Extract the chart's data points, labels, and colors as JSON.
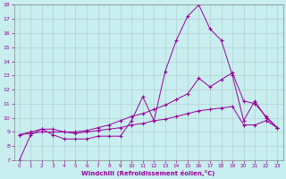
{
  "xlabel": "Windchill (Refroidissement éolien,°C)",
  "xlim": [
    -0.5,
    23.5
  ],
  "ylim": [
    7,
    18
  ],
  "yticks": [
    7,
    8,
    9,
    10,
    11,
    12,
    13,
    14,
    15,
    16,
    17,
    18
  ],
  "xticks": [
    0,
    1,
    2,
    3,
    4,
    5,
    6,
    7,
    8,
    9,
    10,
    11,
    12,
    13,
    14,
    15,
    16,
    17,
    18,
    19,
    20,
    21,
    22,
    23
  ],
  "bg_color": "#c8eef0",
  "grid_color": "#b0c8c8",
  "line_color": "#990099",
  "line1_x": [
    0,
    1,
    2,
    3,
    4,
    5,
    6,
    7,
    8,
    9,
    10,
    11,
    12,
    13,
    14,
    15,
    16,
    17,
    18,
    19,
    20,
    21,
    22,
    23
  ],
  "line1_y": [
    7.0,
    8.8,
    9.2,
    8.8,
    8.5,
    8.5,
    8.5,
    8.7,
    8.7,
    8.7,
    9.8,
    11.5,
    9.8,
    13.3,
    15.5,
    17.2,
    18.0,
    16.3,
    15.5,
    13.0,
    9.8,
    11.2,
    10.0,
    9.3
  ],
  "line2_x": [
    0,
    1,
    2,
    3,
    4,
    5,
    6,
    7,
    8,
    9,
    10,
    11,
    12,
    13,
    14,
    15,
    16,
    17,
    18,
    19,
    20,
    21,
    22,
    23
  ],
  "line2_y": [
    8.8,
    9.0,
    9.2,
    9.2,
    9.0,
    9.0,
    9.1,
    9.3,
    9.5,
    9.8,
    10.1,
    10.3,
    10.6,
    10.9,
    11.3,
    11.7,
    12.8,
    12.2,
    12.7,
    13.2,
    11.2,
    11.0,
    10.1,
    9.3
  ],
  "line3_x": [
    0,
    1,
    2,
    3,
    4,
    5,
    6,
    7,
    8,
    9,
    10,
    11,
    12,
    13,
    14,
    15,
    16,
    17,
    18,
    19,
    20,
    21,
    22,
    23
  ],
  "line3_y": [
    8.8,
    8.9,
    9.0,
    9.0,
    9.0,
    8.9,
    9.0,
    9.1,
    9.2,
    9.3,
    9.5,
    9.6,
    9.8,
    9.9,
    10.1,
    10.3,
    10.5,
    10.6,
    10.7,
    10.8,
    9.5,
    9.5,
    9.8,
    9.3
  ]
}
